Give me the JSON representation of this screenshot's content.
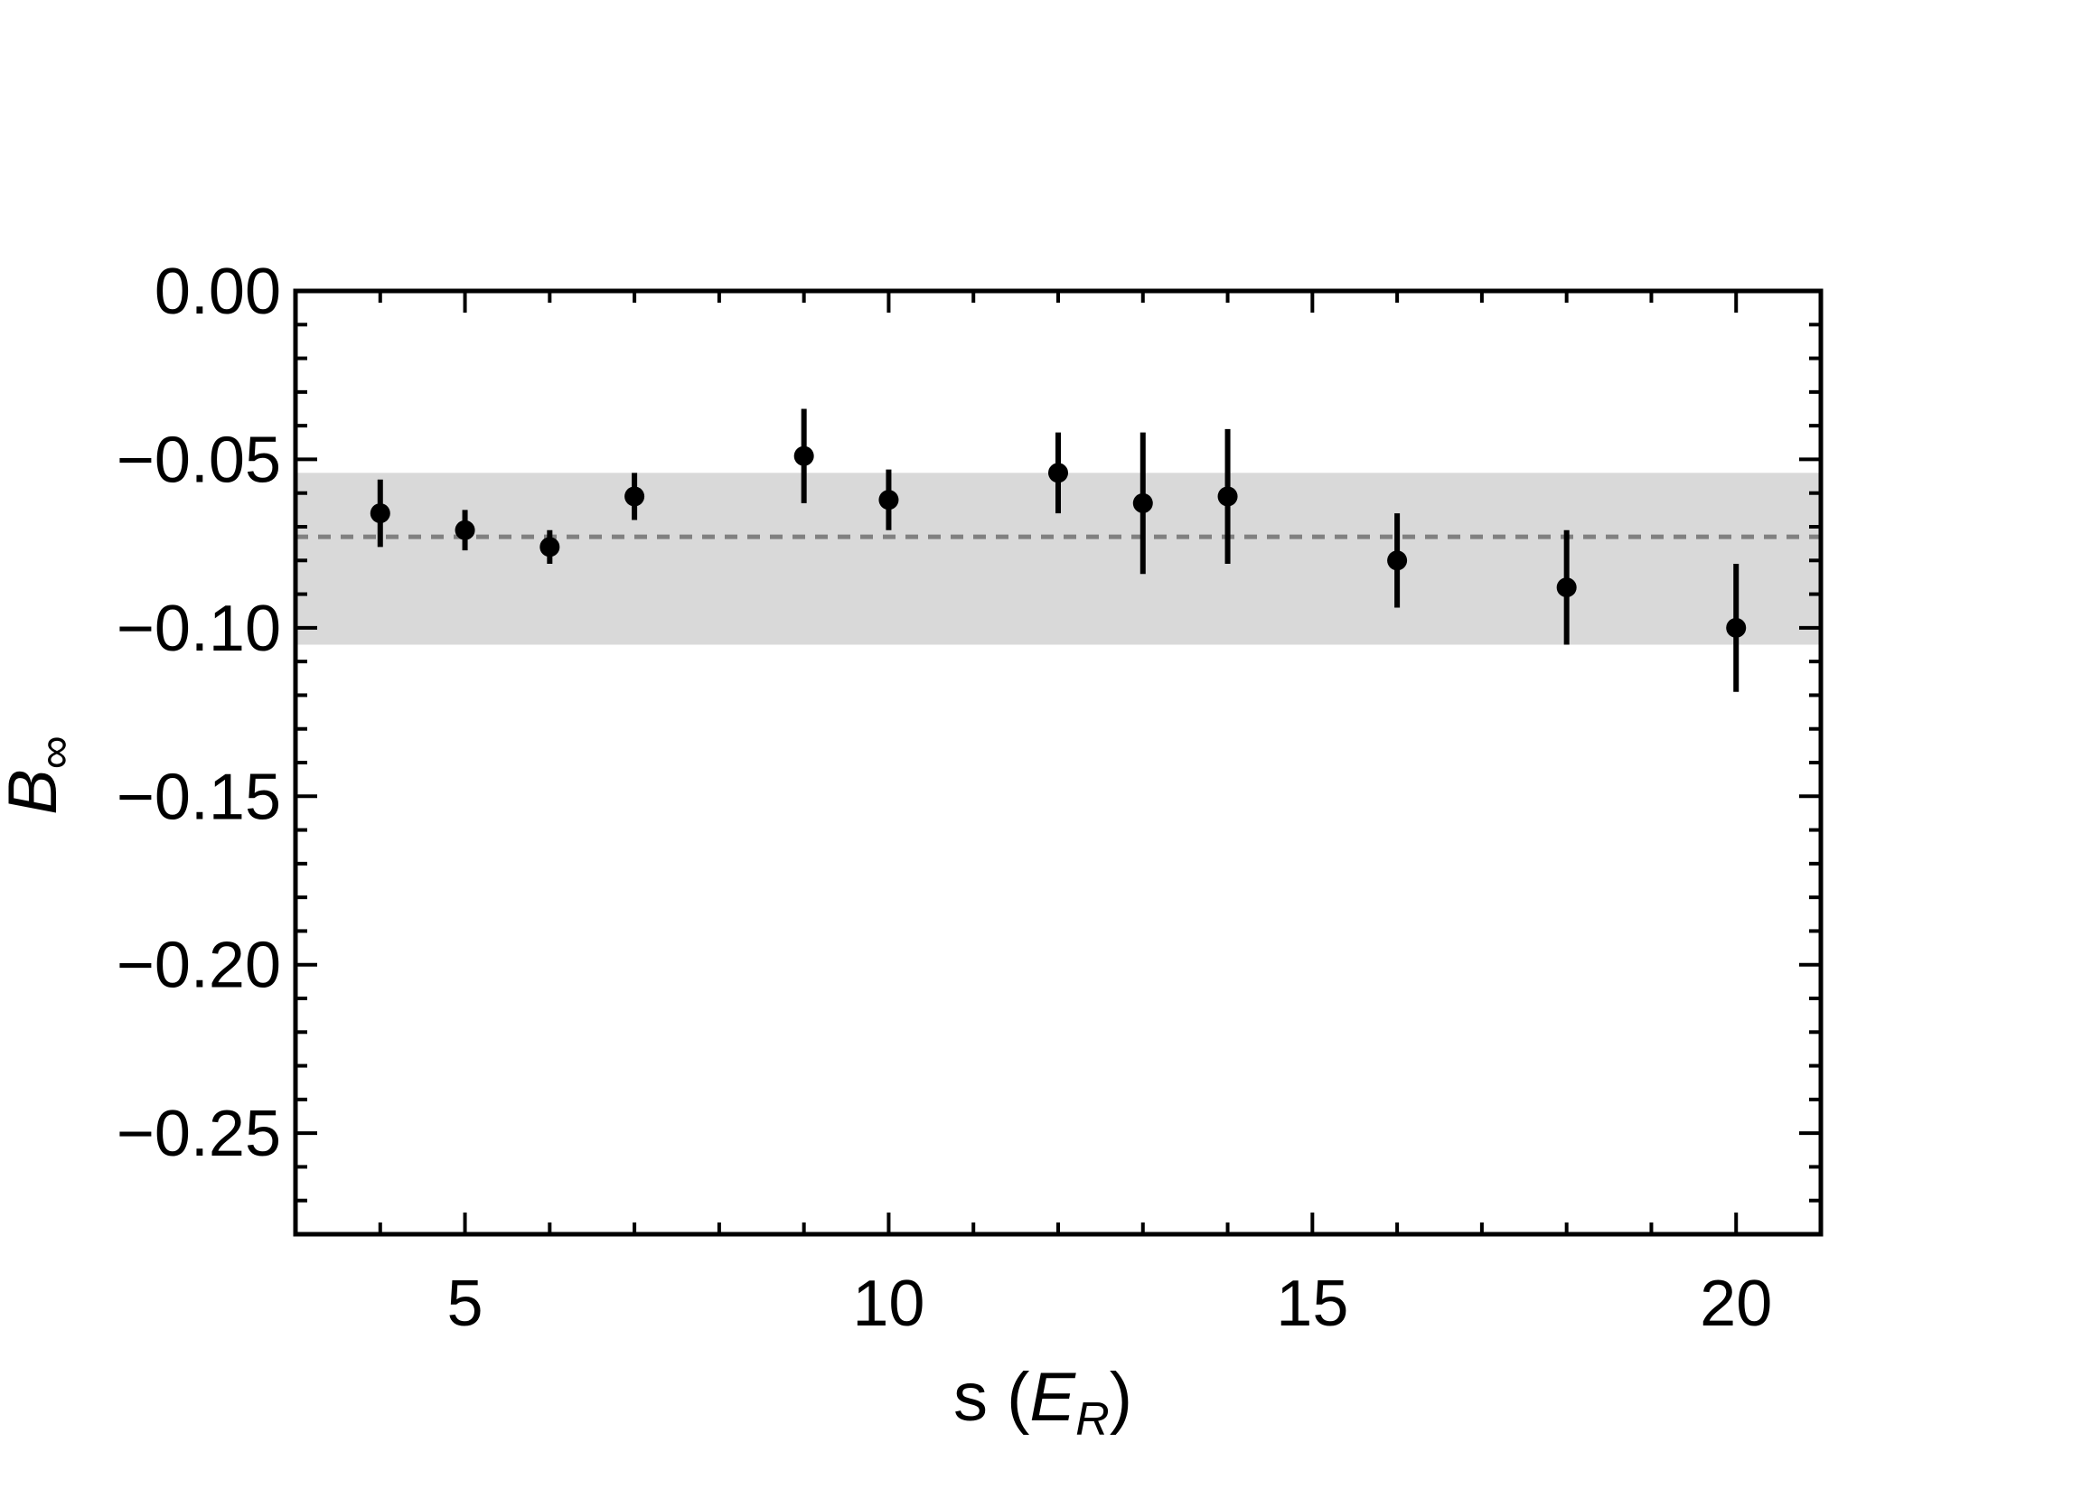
{
  "chart_data": {
    "type": "scatter",
    "title": "",
    "xlabel": {
      "main": "s (",
      "var": "E",
      "sub": "R",
      "close": ")"
    },
    "ylabel": {
      "var": "B",
      "sub": "∞"
    },
    "xlim": [
      3,
      21
    ],
    "ylim": [
      -0.28,
      0.0
    ],
    "x_ticks": [
      5,
      10,
      15,
      20
    ],
    "x_tick_labels": [
      "5",
      "10",
      "15",
      "20"
    ],
    "x_minor_step": 1,
    "y_ticks": [
      0.0,
      -0.05,
      -0.1,
      -0.15,
      -0.2,
      -0.25
    ],
    "y_tick_labels": [
      "0.00",
      "−0.05",
      "−0.10",
      "−0.15",
      "−0.20",
      "−0.25"
    ],
    "y_minor_step": 0.01,
    "grid": false,
    "band": {
      "lower": -0.105,
      "upper": -0.054,
      "color": "#d9d9d9"
    },
    "reference_line": {
      "y": -0.073,
      "style": "dashed",
      "color": "#808080"
    },
    "marker_color": "#000000",
    "series": [
      {
        "x": [
          4,
          5,
          6,
          7,
          9,
          10,
          12,
          13,
          14,
          16,
          18,
          20
        ],
        "y": [
          -0.066,
          -0.071,
          -0.076,
          -0.061,
          -0.049,
          -0.062,
          -0.054,
          -0.063,
          -0.061,
          -0.08,
          -0.088,
          -0.1
        ],
        "err": [
          0.01,
          0.006,
          0.005,
          0.007,
          0.014,
          0.009,
          0.012,
          0.021,
          0.02,
          0.014,
          0.017,
          0.019
        ]
      }
    ]
  }
}
